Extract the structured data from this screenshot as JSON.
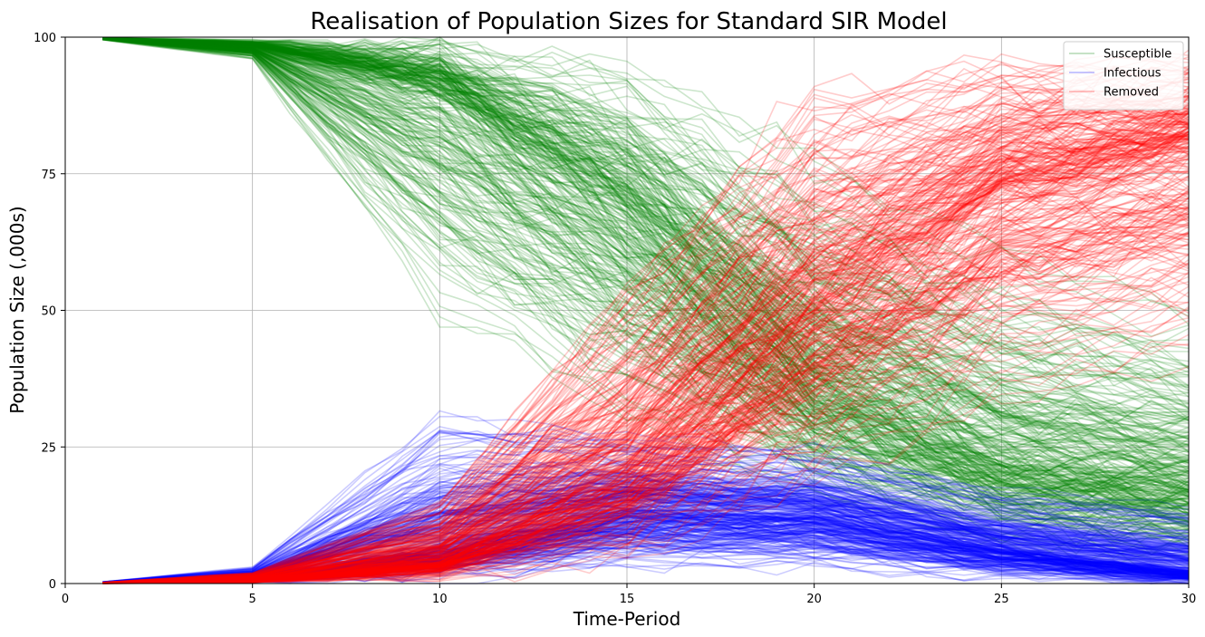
{
  "chart_data": {
    "type": "line",
    "title": "Realisation of Population Sizes for Standard SIR Model",
    "xlabel": "Time-Period",
    "ylabel": "Population Size (,000s)",
    "xlim": [
      0,
      30
    ],
    "ylim": [
      0,
      100
    ],
    "xticks": [
      0,
      5,
      10,
      15,
      20,
      25,
      30
    ],
    "yticks": [
      0,
      25,
      50,
      75,
      100
    ],
    "grid": true,
    "legend_position": "top-right",
    "x_start": 1,
    "realisations_per_series": 300,
    "series": [
      {
        "name": "Susceptible",
        "color": "#008000",
        "opacity": 0.2,
        "x": [
          1,
          5,
          10,
          15,
          20,
          25,
          30
        ],
        "median": [
          99.8,
          98.5,
          91,
          68,
          37,
          22,
          18
        ],
        "low": [
          99.5,
          96,
          50,
          30,
          15,
          8,
          4
        ],
        "high": [
          99.9,
          99.5,
          99,
          95,
          78,
          60,
          50
        ]
      },
      {
        "name": "Infectious",
        "color": "#0000ff",
        "opacity": 0.2,
        "x": [
          1,
          5,
          10,
          15,
          20,
          25,
          30
        ],
        "median": [
          0.2,
          1,
          6,
          13,
          12,
          6,
          2
        ],
        "low": [
          0.2,
          0.3,
          1,
          3,
          3,
          1,
          0
        ],
        "high": [
          0.3,
          3,
          31,
          27,
          25,
          17,
          14
        ]
      },
      {
        "name": "Removed",
        "color": "#ff0000",
        "opacity": 0.2,
        "x": [
          1,
          5,
          10,
          15,
          20,
          25,
          30
        ],
        "median": [
          0.1,
          0.5,
          4,
          20,
          50,
          72,
          80
        ],
        "low": [
          0,
          0.2,
          1,
          5,
          20,
          35,
          42
        ],
        "high": [
          0.2,
          2,
          15,
          55,
          90,
          95,
          96
        ]
      }
    ]
  }
}
